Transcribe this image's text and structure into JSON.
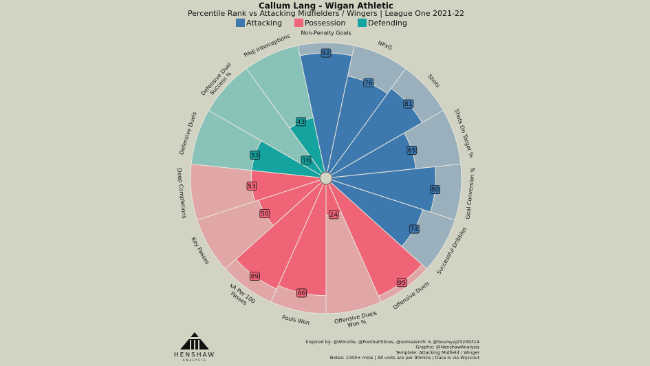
{
  "chart_data": {
    "type": "pizza",
    "title": "Callum Lang - Wigan Athletic",
    "subtitle": "Percentile Rank vs Attacking Midfielders / Wingers | League One 2021-22",
    "categories": [
      "Non-Penalty Goals",
      "NPxG",
      "Shots",
      "Shots On Target %",
      "Goal Conversion %",
      "Successful Dribbles",
      "Offensive Duels",
      "Offensive Duels\nWon %",
      "Fouls Won",
      "xA Per 100\nPasses",
      "Key Passes",
      "Deep Completions",
      "Defensive Duels",
      "Defensive Duel\nSuccess %",
      "PAdj Interceptions"
    ],
    "series": [
      {
        "name": "Attacking",
        "color": "#3d78ae",
        "bg_color": "#9ab0bc",
        "values": [
          92,
          76,
          81,
          65,
          80,
          74,
          null,
          null,
          null,
          null,
          null,
          null,
          null,
          null,
          null
        ]
      },
      {
        "name": "Possession",
        "color": "#f06478",
        "bg_color": "#e0a7a6",
        "values": [
          null,
          null,
          null,
          null,
          null,
          null,
          95,
          24,
          86,
          89,
          50,
          53,
          null,
          null,
          null
        ]
      },
      {
        "name": "Defending",
        "color": "#14a39f",
        "bg_color": "#88c2b8",
        "values": [
          null,
          null,
          null,
          null,
          null,
          null,
          null,
          null,
          null,
          null,
          null,
          null,
          53,
          16,
          43
        ]
      }
    ],
    "ylim": [
      0,
      100
    ],
    "notes": [
      "Inspired by: @Worville, @FootballSlices, @somazerofc & @Soumyaj15209314",
      "Graphic: @HenshawAnalysis",
      "Template: Attacking Midfield / Winger",
      "Notes: 1000+ mins | All units are per 90mins | Data is via Wyscout"
    ],
    "brand": [
      "HENSHAW",
      "ANALYSIS"
    ]
  }
}
